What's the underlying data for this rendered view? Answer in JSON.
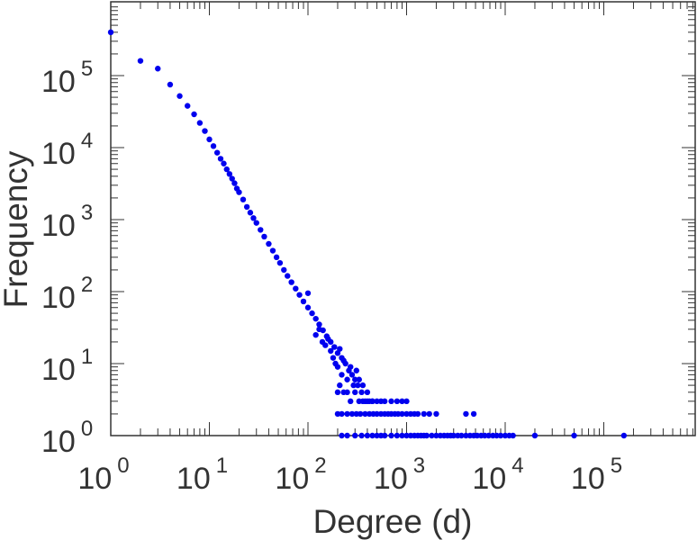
{
  "chart_data": {
    "type": "scatter",
    "xlabel": "Degree (d)",
    "ylabel": "Frequency",
    "x_scale": "log",
    "y_scale": "log",
    "xlim": [
      1,
      1000000
    ],
    "ylim": [
      1,
      1000000
    ],
    "grid": false,
    "marker_color": "#0000ee",
    "x_tick_labels": [
      {
        "base": "10",
        "exp": "0"
      },
      {
        "base": "10",
        "exp": "1"
      },
      {
        "base": "10",
        "exp": "2"
      },
      {
        "base": "10",
        "exp": "3"
      },
      {
        "base": "10",
        "exp": "4"
      },
      {
        "base": "10",
        "exp": "5"
      }
    ],
    "y_tick_labels": [
      {
        "base": "10",
        "exp": "0"
      },
      {
        "base": "10",
        "exp": "1"
      },
      {
        "base": "10",
        "exp": "2"
      },
      {
        "base": "10",
        "exp": "3"
      },
      {
        "base": "10",
        "exp": "4"
      },
      {
        "base": "10",
        "exp": "5"
      }
    ],
    "series": [
      {
        "points": [
          [
            1,
            400000
          ],
          [
            2,
            160000
          ],
          [
            3,
            125000
          ],
          [
            4,
            75000
          ],
          [
            5,
            52000
          ],
          [
            6,
            38000
          ],
          [
            7,
            29000
          ],
          [
            8,
            22000
          ],
          [
            9,
            17000
          ],
          [
            10,
            13000
          ],
          [
            11,
            10500
          ],
          [
            12,
            8500
          ],
          [
            13,
            7000
          ],
          [
            14,
            6000
          ],
          [
            15,
            5000
          ],
          [
            16,
            4300
          ],
          [
            17,
            3700
          ],
          [
            18,
            3200
          ],
          [
            19,
            2700
          ],
          [
            20,
            2400
          ],
          [
            22,
            1900
          ],
          [
            24,
            1500
          ],
          [
            26,
            1250
          ],
          [
            28,
            1050
          ],
          [
            30,
            900
          ],
          [
            33,
            720
          ],
          [
            36,
            580
          ],
          [
            40,
            460
          ],
          [
            44,
            370
          ],
          [
            48,
            300
          ],
          [
            52,
            250
          ],
          [
            57,
            200
          ],
          [
            62,
            165
          ],
          [
            68,
            135
          ],
          [
            75,
            110
          ],
          [
            82,
            90
          ],
          [
            90,
            73
          ],
          [
            100,
            60
          ],
          [
            100,
            95
          ],
          [
            110,
            50
          ],
          [
            120,
            42
          ],
          [
            130,
            35
          ],
          [
            142,
            29
          ],
          [
            155,
            24
          ],
          [
            170,
            20
          ],
          [
            185,
            17
          ],
          [
            200,
            14
          ],
          [
            220,
            12
          ],
          [
            240,
            10
          ],
          [
            260,
            8
          ],
          [
            280,
            7
          ],
          [
            300,
            6
          ],
          [
            320,
            5
          ],
          [
            350,
            4
          ],
          [
            380,
            3
          ],
          [
            420,
            3
          ],
          [
            120,
            25
          ],
          [
            130,
            30
          ],
          [
            140,
            20
          ],
          [
            150,
            18
          ],
          [
            160,
            22
          ],
          [
            170,
            15
          ],
          [
            180,
            12
          ],
          [
            190,
            10
          ],
          [
            200,
            9
          ],
          [
            210,
            16
          ],
          [
            220,
            7
          ],
          [
            230,
            11
          ],
          [
            250,
            6
          ],
          [
            270,
            9
          ],
          [
            290,
            5
          ],
          [
            310,
            8
          ],
          [
            330,
            6
          ],
          [
            360,
            5
          ],
          [
            400,
            4
          ],
          [
            450,
            3
          ],
          [
            200,
            4
          ],
          [
            210,
            5
          ],
          [
            230,
            4
          ],
          [
            250,
            4
          ],
          [
            270,
            3
          ],
          [
            300,
            4
          ],
          [
            330,
            3
          ],
          [
            360,
            3
          ],
          [
            400,
            3
          ],
          [
            450,
            3
          ],
          [
            500,
            3
          ],
          [
            550,
            3
          ],
          [
            600,
            3
          ],
          [
            700,
            3
          ],
          [
            800,
            3
          ],
          [
            900,
            3
          ],
          [
            1000,
            3
          ],
          [
            200,
            2
          ],
          [
            220,
            2
          ],
          [
            250,
            2
          ],
          [
            280,
            2
          ],
          [
            310,
            2
          ],
          [
            340,
            2
          ],
          [
            380,
            2
          ],
          [
            420,
            2
          ],
          [
            460,
            2
          ],
          [
            500,
            2
          ],
          [
            550,
            2
          ],
          [
            600,
            2
          ],
          [
            650,
            2
          ],
          [
            700,
            2
          ],
          [
            760,
            2
          ],
          [
            820,
            2
          ],
          [
            900,
            2
          ],
          [
            1000,
            2
          ],
          [
            1100,
            2
          ],
          [
            1200,
            2
          ],
          [
            1300,
            2
          ],
          [
            1500,
            2
          ],
          [
            1700,
            2
          ],
          [
            2000,
            2
          ],
          [
            4000,
            2
          ],
          [
            4800,
            2
          ],
          [
            220,
            1
          ],
          [
            250,
            1
          ],
          [
            300,
            1
          ],
          [
            350,
            1
          ],
          [
            400,
            1
          ],
          [
            450,
            1
          ],
          [
            500,
            1
          ],
          [
            550,
            1
          ],
          [
            600,
            1
          ],
          [
            700,
            1
          ],
          [
            800,
            1
          ],
          [
            900,
            1
          ],
          [
            1000,
            1
          ],
          [
            1100,
            1
          ],
          [
            1200,
            1
          ],
          [
            1300,
            1
          ],
          [
            1400,
            1
          ],
          [
            1500,
            1
          ],
          [
            1600,
            1
          ],
          [
            1800,
            1
          ],
          [
            2000,
            1
          ],
          [
            2200,
            1
          ],
          [
            2400,
            1
          ],
          [
            2600,
            1
          ],
          [
            2800,
            1
          ],
          [
            3000,
            1
          ],
          [
            3300,
            1
          ],
          [
            3600,
            1
          ],
          [
            4000,
            1
          ],
          [
            4400,
            1
          ],
          [
            4800,
            1
          ],
          [
            5200,
            1
          ],
          [
            5700,
            1
          ],
          [
            6200,
            1
          ],
          [
            6800,
            1
          ],
          [
            7500,
            1
          ],
          [
            8200,
            1
          ],
          [
            9000,
            1
          ],
          [
            10000,
            1
          ],
          [
            11000,
            1
          ],
          [
            12000,
            1
          ],
          [
            20000,
            1
          ],
          [
            50000,
            1
          ],
          [
            160000,
            1
          ]
        ]
      }
    ]
  }
}
